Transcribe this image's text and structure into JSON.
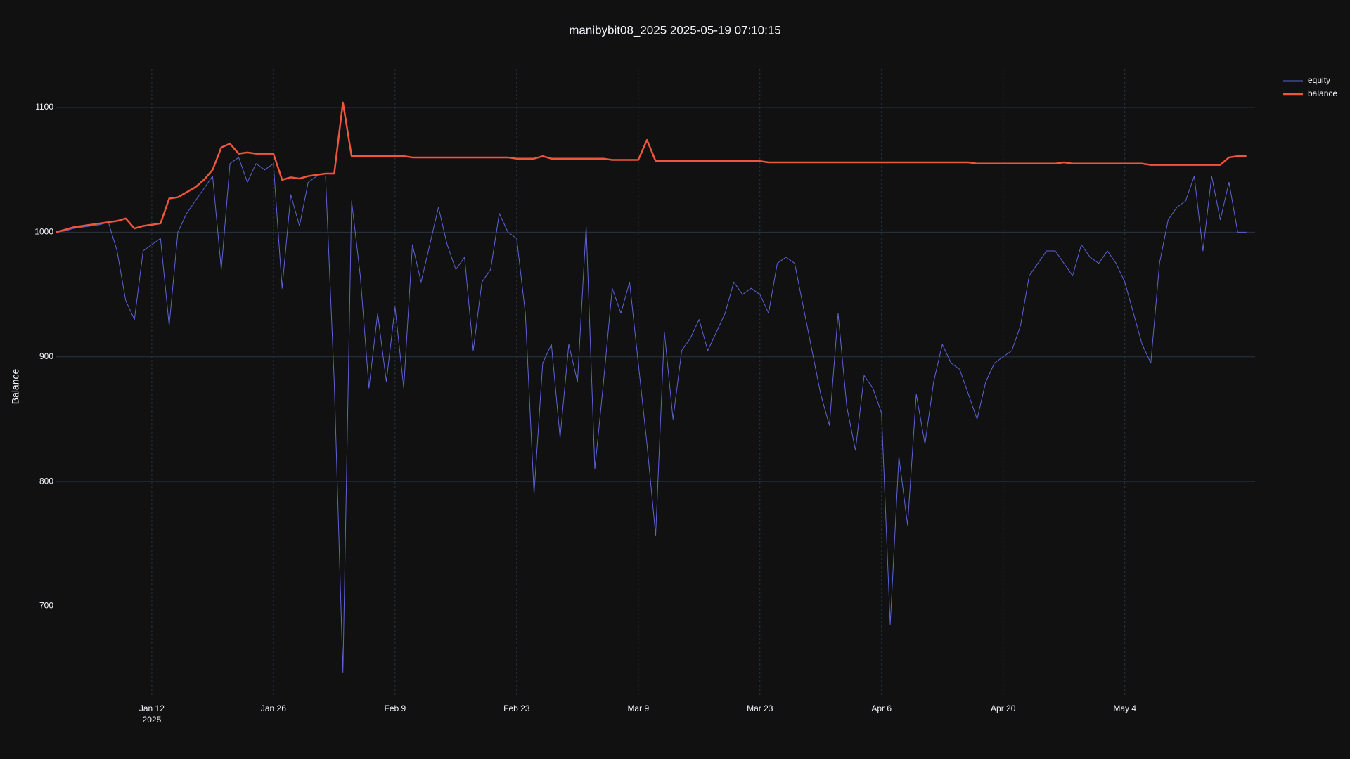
{
  "chart_data": {
    "type": "line",
    "title": "manibybit08_2025 2025-05-19 07:10:15",
    "y_label": "Balance",
    "x": [
      "2025-01-01",
      "2025-01-02",
      "2025-01-03",
      "2025-01-04",
      "2025-01-05",
      "2025-01-06",
      "2025-01-07",
      "2025-01-08",
      "2025-01-09",
      "2025-01-10",
      "2025-01-11",
      "2025-01-12",
      "2025-01-13",
      "2025-01-14",
      "2025-01-15",
      "2025-01-16",
      "2025-01-17",
      "2025-01-18",
      "2025-01-19",
      "2025-01-20",
      "2025-01-21",
      "2025-01-22",
      "2025-01-23",
      "2025-01-24",
      "2025-01-25",
      "2025-01-26",
      "2025-01-27",
      "2025-01-28",
      "2025-01-29",
      "2025-01-30",
      "2025-01-31",
      "2025-02-01",
      "2025-02-02",
      "2025-02-03",
      "2025-02-04",
      "2025-02-05",
      "2025-02-06",
      "2025-02-07",
      "2025-02-08",
      "2025-02-09",
      "2025-02-10",
      "2025-02-11",
      "2025-02-12",
      "2025-02-13",
      "2025-02-14",
      "2025-02-15",
      "2025-02-16",
      "2025-02-17",
      "2025-02-18",
      "2025-02-19",
      "2025-02-20",
      "2025-02-21",
      "2025-02-22",
      "2025-02-23",
      "2025-02-24",
      "2025-02-25",
      "2025-02-26",
      "2025-02-27",
      "2025-02-28",
      "2025-03-01",
      "2025-03-02",
      "2025-03-03",
      "2025-03-04",
      "2025-03-05",
      "2025-03-06",
      "2025-03-07",
      "2025-03-08",
      "2025-03-09",
      "2025-03-10",
      "2025-03-11",
      "2025-03-12",
      "2025-03-13",
      "2025-03-14",
      "2025-03-15",
      "2025-03-16",
      "2025-03-17",
      "2025-03-18",
      "2025-03-19",
      "2025-03-20",
      "2025-03-21",
      "2025-03-22",
      "2025-03-23",
      "2025-03-24",
      "2025-03-25",
      "2025-03-26",
      "2025-03-27",
      "2025-03-28",
      "2025-03-29",
      "2025-03-30",
      "2025-03-31",
      "2025-04-01",
      "2025-04-02",
      "2025-04-03",
      "2025-04-04",
      "2025-04-05",
      "2025-04-06",
      "2025-04-07",
      "2025-04-08",
      "2025-04-09",
      "2025-04-10",
      "2025-04-11",
      "2025-04-12",
      "2025-04-13",
      "2025-04-14",
      "2025-04-15",
      "2025-04-16",
      "2025-04-17",
      "2025-04-18",
      "2025-04-19",
      "2025-04-20",
      "2025-04-21",
      "2025-04-22",
      "2025-04-23",
      "2025-04-24",
      "2025-04-25",
      "2025-04-26",
      "2025-04-27",
      "2025-04-28",
      "2025-04-29",
      "2025-04-30",
      "2025-05-01",
      "2025-05-02",
      "2025-05-03",
      "2025-05-04",
      "2025-05-05",
      "2025-05-06",
      "2025-05-07",
      "2025-05-08",
      "2025-05-09",
      "2025-05-10",
      "2025-05-11",
      "2025-05-12",
      "2025-05-13",
      "2025-05-14",
      "2025-05-15",
      "2025-05-16",
      "2025-05-17",
      "2025-05-18"
    ],
    "series": [
      {
        "name": "equity",
        "color": "#5c64d6",
        "width": 1,
        "values": [
          1000,
          1001,
          1003,
          1004,
          1005,
          1006,
          1008,
          985,
          945,
          930,
          985,
          990,
          995,
          925,
          1000,
          1015,
          1025,
          1035,
          1045,
          970,
          1055,
          1060,
          1040,
          1055,
          1050,
          1055,
          955,
          1030,
          1005,
          1040,
          1045,
          1045,
          880,
          647,
          1025,
          965,
          875,
          935,
          880,
          940,
          875,
          990,
          960,
          990,
          1020,
          990,
          970,
          980,
          905,
          960,
          970,
          1015,
          1000,
          995,
          935,
          790,
          895,
          910,
          835,
          910,
          880,
          1005,
          810,
          880,
          955,
          935,
          960,
          895,
          830,
          757,
          920,
          850,
          905,
          915,
          930,
          905,
          920,
          935,
          960,
          950,
          955,
          950,
          935,
          975,
          980,
          975,
          940,
          905,
          870,
          845,
          935,
          860,
          825,
          885,
          875,
          855,
          685,
          820,
          765,
          870,
          830,
          880,
          910,
          895,
          890,
          870,
          850,
          880,
          895,
          900,
          905,
          925,
          965,
          975,
          985,
          985,
          975,
          965,
          990,
          980,
          975,
          985,
          975,
          960,
          935,
          910,
          895,
          975,
          1010,
          1020,
          1025,
          1045,
          985,
          1045,
          1010,
          1040,
          1000,
          1000
        ]
      },
      {
        "name": "balance",
        "color": "#ef553b",
        "width": 2.5,
        "values": [
          1000,
          1002,
          1004,
          1005,
          1006,
          1007,
          1008,
          1009,
          1011,
          1003,
          1005,
          1006,
          1007,
          1027,
          1028,
          1032,
          1036,
          1042,
          1050,
          1068,
          1071,
          1063,
          1064,
          1063,
          1063,
          1063,
          1042,
          1044,
          1043,
          1045,
          1046,
          1047,
          1047,
          1104,
          1061,
          1061,
          1061,
          1061,
          1061,
          1061,
          1061,
          1060,
          1060,
          1060,
          1060,
          1060,
          1060,
          1060,
          1060,
          1060,
          1060,
          1060,
          1060,
          1059,
          1059,
          1059,
          1061,
          1059,
          1059,
          1059,
          1059,
          1059,
          1059,
          1059,
          1058,
          1058,
          1058,
          1058,
          1074,
          1057,
          1057,
          1057,
          1057,
          1057,
          1057,
          1057,
          1057,
          1057,
          1057,
          1057,
          1057,
          1057,
          1056,
          1056,
          1056,
          1056,
          1056,
          1056,
          1056,
          1056,
          1056,
          1056,
          1056,
          1056,
          1056,
          1056,
          1056,
          1056,
          1056,
          1056,
          1056,
          1056,
          1056,
          1056,
          1056,
          1056,
          1055,
          1055,
          1055,
          1055,
          1055,
          1055,
          1055,
          1055,
          1055,
          1055,
          1056,
          1055,
          1055,
          1055,
          1055,
          1055,
          1055,
          1055,
          1055,
          1055,
          1054,
          1054,
          1054,
          1054,
          1054,
          1054,
          1054,
          1054,
          1054,
          1060,
          1061,
          1061
        ]
      }
    ],
    "xlim": [
      "2025-01-01",
      "2025-05-19"
    ],
    "xticks": [
      {
        "value": "2025-01-12",
        "label": "Jan 12\n2025"
      },
      {
        "value": "2025-01-26",
        "label": "Jan 26"
      },
      {
        "value": "2025-02-09",
        "label": "Feb 9"
      },
      {
        "value": "2025-02-23",
        "label": "Feb 23"
      },
      {
        "value": "2025-03-09",
        "label": "Mar 9"
      },
      {
        "value": "2025-03-23",
        "label": "Mar 23"
      },
      {
        "value": "2025-04-06",
        "label": "Apr 6"
      },
      {
        "value": "2025-04-20",
        "label": "Apr 20"
      },
      {
        "value": "2025-05-04",
        "label": "May 4"
      }
    ],
    "ylim": [
      627,
      1131
    ],
    "yticks": [
      700,
      800,
      900,
      1000,
      1100
    ],
    "grid": true,
    "legend": "top-right"
  }
}
